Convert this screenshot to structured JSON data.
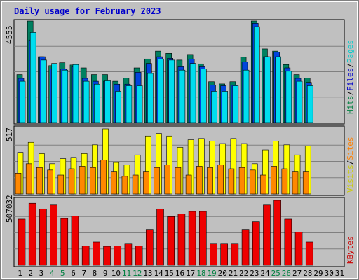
{
  "chart_data": {
    "type": "bar",
    "title": "Daily usage for February 2023",
    "x_labels": [
      "1",
      "2",
      "3",
      "4",
      "5",
      "6",
      "7",
      "8",
      "9",
      "10",
      "11",
      "12",
      "13",
      "14",
      "15",
      "16",
      "17",
      "18",
      "19",
      "20",
      "21",
      "22",
      "23",
      "24",
      "25",
      "26",
      "27",
      "28",
      "29",
      "30",
      "31"
    ],
    "weekend_days": [
      4,
      5,
      11,
      12,
      18,
      19,
      25,
      26
    ],
    "colors": {
      "hits": "#00aaaa",
      "files": "#0000cc",
      "pages": "#00cccc",
      "sites": "#ff8000",
      "visits": "#cccc00",
      "kbytes": "#cc0000",
      "weekend_label": "#008040",
      "weekday_label": "#000000"
    },
    "panels": [
      {
        "name": "requests",
        "ymax_label": "4555",
        "ymax": 4555,
        "series": [
          {
            "name": "Hits",
            "values": [
              2150,
              4555,
              2950,
              2550,
              2680,
              2580,
              2450,
              2150,
              2150,
              1850,
              1990,
              2450,
              2850,
              3200,
              3100,
              2800,
              3050,
              2630,
              1830,
              1730,
              1830,
              2930,
              4555,
              3300,
              3200,
              2600,
              2150,
              2000,
              0,
              0,
              0
            ]
          },
          {
            "name": "Files",
            "values": [
              1980,
              3700,
              2950,
              2400,
              2400,
              2500,
              1980,
              1850,
              1850,
              1720,
              1720,
              2250,
              2650,
              2950,
              2880,
              2500,
              2850,
              2500,
              1680,
              1650,
              1680,
              2720,
              4450,
              2950,
              3150,
              2450,
              1980,
              1800,
              0,
              0,
              0
            ]
          },
          {
            "name": "Pages",
            "values": [
              1850,
              4040,
              2800,
              2650,
              2350,
              2600,
              1850,
              1720,
              1870,
              1400,
              1650,
              1650,
              2200,
              2850,
              2800,
              2350,
              2650,
              2400,
              1400,
              1400,
              1650,
              2350,
              4300,
              2950,
              2950,
              2300,
              1850,
              1650,
              0,
              0,
              0
            ]
          }
        ]
      },
      {
        "name": "visitors",
        "ymax_label": "517",
        "ymax": 517,
        "series": [
          {
            "name": "Visits",
            "values": [
              330,
              410,
              320,
              240,
              280,
              290,
              320,
              390,
              517,
              250,
              230,
              310,
              460,
              480,
              460,
              370,
              430,
              440,
              420,
              400,
              440,
              400,
              240,
              350,
              420,
              390,
              310,
              380,
              0,
              0,
              0
            ]
          },
          {
            "name": "Sites",
            "values": [
              165,
              240,
              210,
              190,
              150,
              200,
              220,
              210,
              270,
              180,
              140,
              150,
              180,
              210,
              230,
              210,
              150,
              220,
              210,
              230,
              200,
              210,
              190,
              150,
              220,
              200,
              180,
              180,
              0,
              0,
              0
            ]
          }
        ]
      },
      {
        "name": "volume",
        "ymax_label": "507032",
        "ymax": 507032,
        "series": [
          {
            "name": "KBytes",
            "values": [
              360000,
              484000,
              440000,
              470000,
              365000,
              384000,
              150000,
              180000,
              147000,
              150000,
              170000,
              150000,
              280000,
              440000,
              380000,
              400000,
              420000,
              420000,
              170000,
              170000,
              170000,
              280000,
              340000,
              470000,
              507032,
              360000,
              260000,
              180000,
              0,
              0,
              0
            ]
          }
        ]
      }
    ],
    "legend": {
      "requests": [
        {
          "text": "Hits",
          "color": "#008040"
        },
        {
          "text": "/",
          "color": "#000000"
        },
        {
          "text": "Files",
          "color": "#0000cc"
        },
        {
          "text": "/",
          "color": "#000000"
        },
        {
          "text": "Pages",
          "color": "#00cccc"
        }
      ],
      "visitors": [
        {
          "text": "Visits",
          "color": "#cccc00"
        },
        {
          "text": "/",
          "color": "#000000"
        },
        {
          "text": "Sites",
          "color": "#ff8000"
        }
      ],
      "volume": [
        {
          "text": "KBytes",
          "color": "#cc0000"
        }
      ]
    }
  }
}
